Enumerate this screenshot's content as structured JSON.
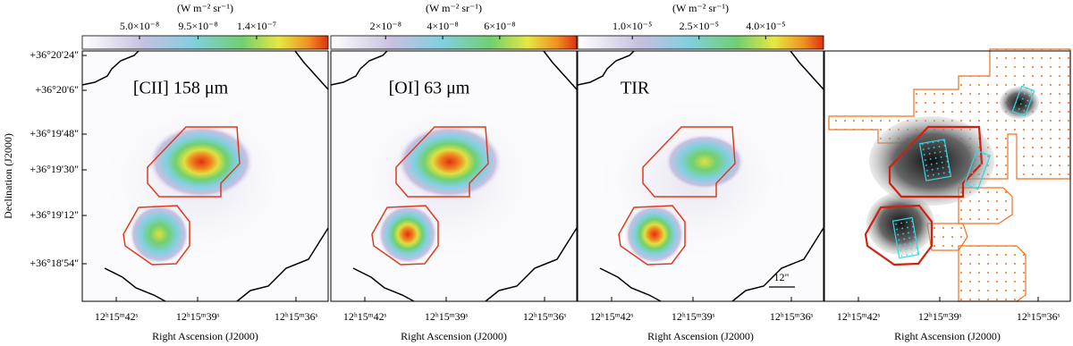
{
  "y_axis": {
    "title": "Declination (J2000)",
    "tick_labels": [
      "+36°20'24\"",
      "+36°20'6\"",
      "+36°19'48\"",
      "+36°19'30\"",
      "+36°19'12\"",
      "+36°18'54\""
    ]
  },
  "panels": [
    {
      "label": "[CII] 158 μm",
      "colorbar": {
        "unit": "(W m⁻² sr⁻¹)",
        "lim": [
          6e-09,
          1.95e-07
        ],
        "ticks": [
          {
            "value": 5e-08,
            "label": "5.0×10⁻⁸"
          },
          {
            "value": 9.5e-08,
            "label": "9.5×10⁻⁸"
          },
          {
            "value": 1.4e-07,
            "label": "1.4×10⁻⁷"
          }
        ]
      },
      "x_axis": {
        "title": "Right Ascension (J2000)",
        "tick_labels": [
          "12ʰ15ᵐ42ˢ",
          "12ʰ15ᵐ39ˢ",
          "12ʰ15ᵐ36ˢ"
        ]
      }
    },
    {
      "label": "[OI] 63 μm",
      "colorbar": {
        "unit": "(W m⁻² sr⁻¹)",
        "lim": [
          8e-10,
          8.7e-08
        ],
        "ticks": [
          {
            "value": 2e-08,
            "label": "2×10⁻⁸"
          },
          {
            "value": 4e-08,
            "label": "4×10⁻⁸"
          },
          {
            "value": 6e-08,
            "label": "6×10⁻⁸"
          }
        ]
      },
      "x_axis": {
        "title": "Right Ascension (J2000)",
        "tick_labels": [
          "12ʰ15ᵐ42ˢ",
          "12ʰ15ᵐ39ˢ",
          "12ʰ15ᵐ36ˢ"
        ]
      }
    },
    {
      "label": "TIR",
      "scale_bar": "12\"",
      "colorbar": {
        "unit": "(W m⁻² sr⁻¹)",
        "lim": [
          -2.3e-06,
          5.3e-05
        ],
        "ticks": [
          {
            "value": 1e-05,
            "label": "1.0×10⁻⁵"
          },
          {
            "value": 2.5e-05,
            "label": "2.5×10⁻⁵"
          },
          {
            "value": 4e-05,
            "label": "4.0×10⁻⁵"
          }
        ]
      },
      "x_axis": {
        "title": "Right Ascension (J2000)",
        "tick_labels": [
          "12ʰ15ᵐ42ˢ",
          "12ʰ15ᵐ39ˢ",
          "12ʰ15ᵐ36ˢ"
        ]
      }
    },
    {
      "x_axis": {
        "title": "Right Ascension (J2000)",
        "tick_labels": [
          "12ʰ15ᵐ42ˢ",
          "12ʰ15ᵐ39ˢ",
          "12ʰ15ᵐ36ˢ"
        ]
      }
    }
  ]
}
